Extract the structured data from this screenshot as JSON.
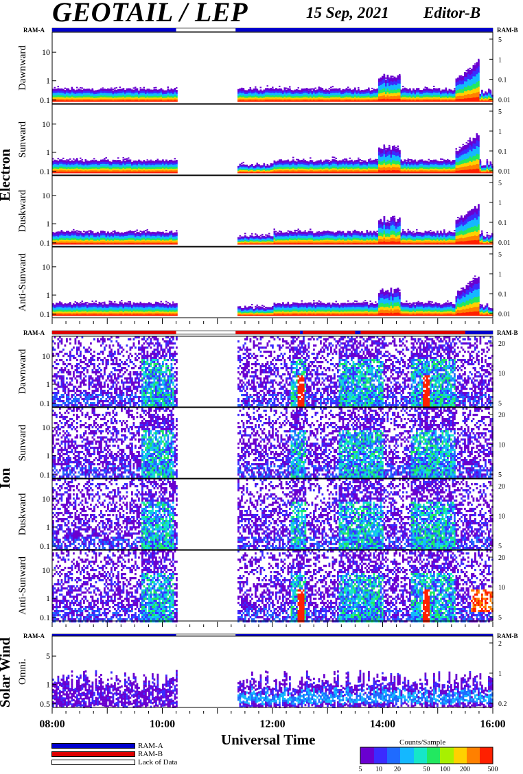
{
  "header": {
    "title": "GEOTAIL / LEP",
    "date": "15 Sep, 2021",
    "editor": "Editor-B"
  },
  "x_axis": {
    "label": "Universal Time",
    "ticks": [
      "08:00",
      "10:00",
      "12:00",
      "14:00",
      "16:00"
    ]
  },
  "groups": {
    "electron": "Electron",
    "ion": "Ion",
    "solar_wind": "Solar Wind"
  },
  "ram": {
    "a": "RAM-A",
    "b": "RAM-B"
  },
  "legend": {
    "ram_a": "RAM-A",
    "ram_b": "RAM-B",
    "lack": "Lack of Data"
  },
  "colorbar": {
    "title": "Counts/Sample",
    "ticks": [
      "5",
      "10",
      "20",
      "50",
      "100",
      "200",
      "500"
    ]
  },
  "colors": {
    "ram_a": "#0000cc",
    "ram_b": "#dd0000",
    "lack": "#ffffff"
  },
  "chart_data": {
    "type": "heatmap",
    "x_range": [
      "08:00",
      "16:00"
    ],
    "data_gap": [
      "10:15",
      "11:20"
    ],
    "panels": [
      {
        "group": "Electron",
        "name": "Dawnward",
        "left_ticks": [
          "10",
          "1",
          "0.1"
        ],
        "right_ticks": [
          "5",
          "1",
          "0.1",
          "0.01"
        ]
      },
      {
        "group": "Electron",
        "name": "Sunward",
        "left_ticks": [
          "10",
          "1",
          "0.1"
        ],
        "right_ticks": [
          "5",
          "1",
          "0.1",
          "0.01"
        ]
      },
      {
        "group": "Electron",
        "name": "Duskward",
        "left_ticks": [
          "10",
          "1",
          "0.1"
        ],
        "right_ticks": [
          "5",
          "1",
          "0.1",
          "0.01"
        ]
      },
      {
        "group": "Electron",
        "name": "Anti-Sunward",
        "left_ticks": [
          "10",
          "1",
          "0.1"
        ],
        "right_ticks": [
          "5",
          "1",
          "0.1",
          "0.01"
        ]
      },
      {
        "group": "Ion",
        "name": "Dawnward",
        "left_ticks": [
          "10",
          "1",
          "0.1"
        ],
        "right_ticks": [
          "20",
          "10",
          "5"
        ]
      },
      {
        "group": "Ion",
        "name": "Sunward",
        "left_ticks": [
          "10",
          "1",
          "0.1"
        ],
        "right_ticks": [
          "20",
          "10",
          "5"
        ]
      },
      {
        "group": "Ion",
        "name": "Duskward",
        "left_ticks": [
          "10",
          "1",
          "0.1"
        ],
        "right_ticks": [
          "20",
          "10",
          "5"
        ]
      },
      {
        "group": "Ion",
        "name": "Anti-Sunward",
        "left_ticks": [
          "10",
          "1",
          "0.1"
        ],
        "right_ticks": [
          "20",
          "10",
          "5"
        ]
      },
      {
        "group": "Solar Wind",
        "name": "Omni.",
        "left_ticks": [
          "5",
          "1",
          "0.5"
        ],
        "right_ticks": [
          "2",
          "1",
          "0.2"
        ]
      }
    ]
  }
}
